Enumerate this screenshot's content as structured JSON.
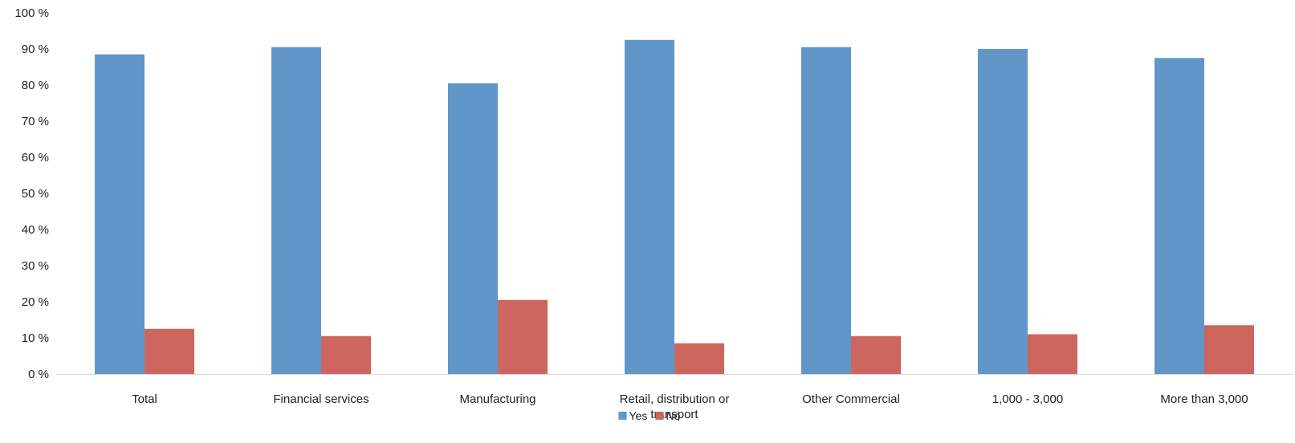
{
  "chart_data": {
    "type": "bar",
    "title": "",
    "xlabel": "",
    "ylabel": "",
    "categories": [
      "Total",
      "Financial services",
      "Manufacturing",
      "Retail, distribution or transport",
      "Other Commercial",
      "1,000 - 3,000",
      "More than 3,000"
    ],
    "series": [
      {
        "name": "Yes",
        "color": "#6096C8",
        "values": [
          88.5,
          90.5,
          80.5,
          92.5,
          90.5,
          90,
          87.5
        ]
      },
      {
        "name": "No",
        "color": "#CD665E",
        "values": [
          12.5,
          10.5,
          20.5,
          8.5,
          10.5,
          11,
          13.5
        ]
      }
    ],
    "ylim": [
      0,
      100
    ],
    "yticks": [
      0,
      10,
      20,
      30,
      40,
      50,
      60,
      70,
      80,
      90,
      100
    ],
    "ytick_labels": [
      "0 %",
      "10 %",
      "20 %",
      "30 %",
      "40 %",
      "50 %",
      "60 %",
      "70 %",
      "80 %",
      "90 %",
      "100 %"
    ],
    "grid": false,
    "legend": "bottom-center"
  }
}
